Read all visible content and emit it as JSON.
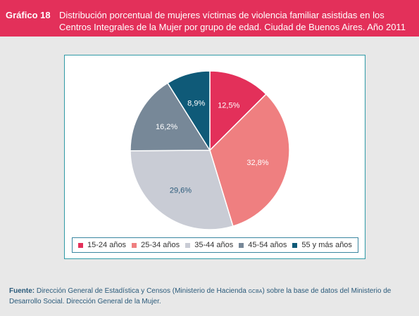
{
  "header": {
    "figure_label": "Gráfico 18",
    "title": "Distribución porcentual de mujeres víctimas de violencia familiar asistidas en los Centros Integrales de la Mujer por grupo de edad. Ciudad de Buenos Aires. Año 2011"
  },
  "chart_data": {
    "type": "pie",
    "title": "",
    "start": "top, clockwise",
    "slices": [
      {
        "label": "15-24 años",
        "value": 12.5,
        "display": "12,5%",
        "color": "#e3305a",
        "text_color": "#ffffff"
      },
      {
        "label": "25-34 años",
        "value": 32.8,
        "display": "32,8%",
        "color": "#ef7f80",
        "text_color": "#ffffff"
      },
      {
        "label": "35-44 años",
        "value": 29.6,
        "display": "29,6%",
        "color": "#c9ccd5",
        "text_color": "#2a5a7a"
      },
      {
        "label": "45-54 años",
        "value": 16.2,
        "display": "16,2%",
        "color": "#778898",
        "text_color": "#ffffff"
      },
      {
        "label": "55 y más años",
        "value": 8.9,
        "display": "8,9%",
        "color": "#0f5a78",
        "text_color": "#ffffff"
      }
    ],
    "legend_position": "bottom"
  },
  "source": {
    "label": "Fuente:",
    "text_before_org": "Dirección General de Estadística y Censos (Ministerio de Hacienda",
    "org_abbrev": "GCBA",
    "text_after_org": ") sobre la base de datos del Ministerio de Desarrollo Social. Dirección General de la Mujer."
  }
}
